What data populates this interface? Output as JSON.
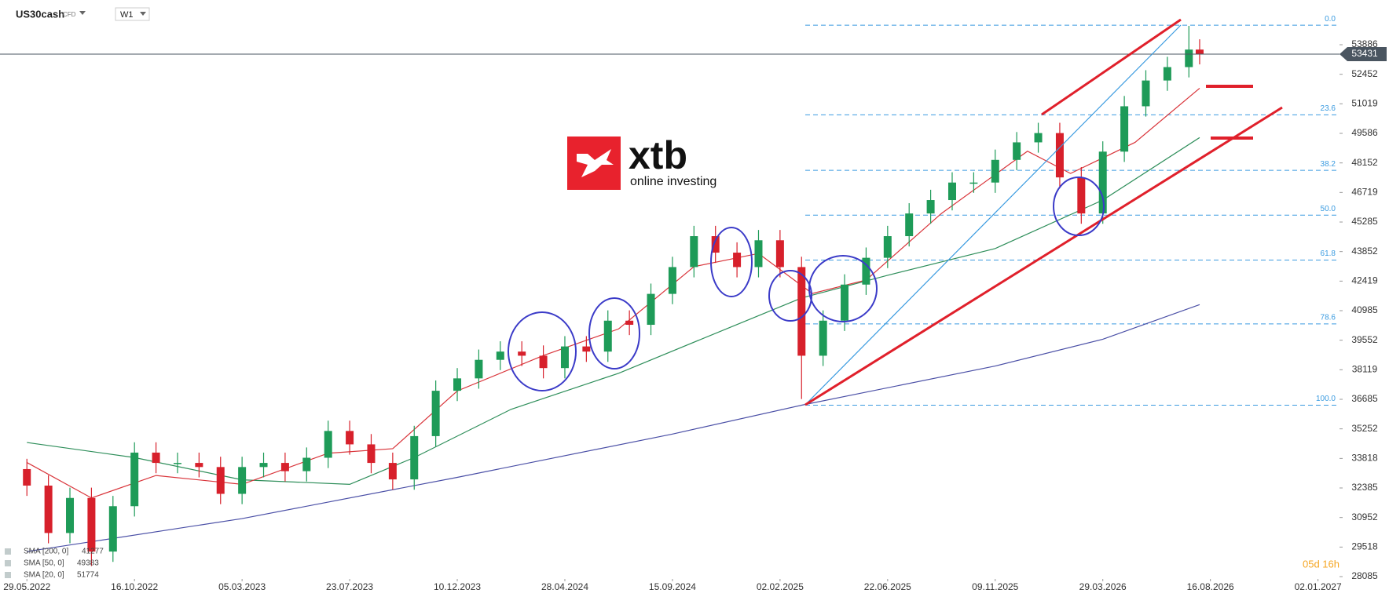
{
  "header": {
    "symbol": "US30cash",
    "instrument_type": "CFD",
    "timeframe": "W1",
    "countdown": "05d 16h"
  },
  "logo": {
    "name": "xtb",
    "tagline": "online investing"
  },
  "chart_data": {
    "type": "candlestick",
    "x": [
      0,
      4,
      8,
      12,
      16,
      20,
      24,
      28,
      32,
      36,
      40,
      44,
      48,
      52,
      56,
      60,
      64,
      68,
      72,
      76,
      80,
      84,
      88,
      92,
      96,
      100,
      104,
      108,
      112,
      116,
      120,
      124,
      128,
      132,
      136,
      140,
      144,
      148,
      152,
      156,
      160,
      164,
      168,
      172,
      176,
      180,
      184,
      188,
      192,
      196,
      200,
      204,
      208,
      212,
      216,
      218
    ],
    "open": [
      33300,
      32500,
      30200,
      31900,
      29300,
      31500,
      34100,
      33600,
      33600,
      33400,
      32100,
      33400,
      33600,
      33200,
      33850,
      35150,
      34500,
      33600,
      32800,
      34900,
      37100,
      37700,
      38600,
      39000,
      38800,
      38200,
      39250,
      39000,
      40500,
      40300,
      41800,
      43100,
      44600,
      43800,
      43100,
      44400,
      43100,
      38800,
      40500,
      42250,
      43550,
      44600,
      45700,
      46350,
      47200,
      47200,
      48300,
      49150,
      49600,
      47450,
      45700,
      48700,
      50900,
      52150,
      52800,
      53650
    ],
    "high": [
      33800,
      33000,
      32400,
      32400,
      32000,
      34600,
      34600,
      34100,
      34100,
      33900,
      33900,
      34100,
      34100,
      34350,
      35650,
      35650,
      35000,
      34100,
      35400,
      37600,
      38200,
      39100,
      39500,
      39500,
      39300,
      39750,
      39750,
      41000,
      41000,
      42300,
      43600,
      45100,
      45100,
      44300,
      44900,
      44900,
      43600,
      41000,
      42750,
      44050,
      45100,
      46200,
      46850,
      47700,
      47700,
      48800,
      49650,
      50100,
      50100,
      47950,
      49200,
      51400,
      52650,
      53300,
      54800,
      54150
    ],
    "low": [
      32000,
      29700,
      29700,
      28600,
      28800,
      31000,
      33100,
      33100,
      32900,
      31600,
      31600,
      32900,
      32700,
      32700,
      33350,
      34000,
      33100,
      32300,
      32300,
      34400,
      36600,
      37200,
      38100,
      38300,
      37700,
      37700,
      38500,
      38500,
      39800,
      39800,
      41300,
      42600,
      43300,
      42600,
      42600,
      42600,
      36700,
      38300,
      40000,
      41750,
      43050,
      44100,
      45200,
      45850,
      46700,
      46700,
      47800,
      48650,
      46950,
      45200,
      45200,
      48200,
      50400,
      51650,
      52300,
      52931
    ],
    "close": [
      32500,
      30200,
      31900,
      29300,
      31500,
      34100,
      33600,
      33600,
      33400,
      32100,
      33400,
      33600,
      33200,
      33850,
      35150,
      34500,
      33600,
      32800,
      34900,
      37100,
      37700,
      38600,
      39000,
      38800,
      38200,
      39250,
      39000,
      40500,
      40300,
      41800,
      43100,
      44600,
      43800,
      43100,
      44400,
      43100,
      38800,
      40500,
      42250,
      43550,
      44600,
      45700,
      46350,
      47200,
      47200,
      48300,
      49150,
      49600,
      47450,
      45700,
      48700,
      50900,
      52150,
      52800,
      53650,
      53431
    ],
    "up_color": "#1e9b58",
    "down_color": "#d7202b",
    "indicators": [
      {
        "name": "SMA [200, 0]",
        "color": "#4a4fa6",
        "x": [
          0,
          40,
          80,
          120,
          144,
          180,
          200,
          218
        ],
        "values": [
          29300,
          30900,
          32900,
          35000,
          36400,
          38300,
          39600,
          41277
        ]
      },
      {
        "name": "SMA [50, 0]",
        "color": "#2e8e5a",
        "x": [
          0,
          20,
          40,
          60,
          72,
          90,
          110,
          130,
          144,
          160,
          180,
          200,
          218
        ],
        "values": [
          34590,
          33860,
          32780,
          32560,
          33860,
          36200,
          37950,
          40100,
          41600,
          42700,
          44000,
          46350,
          49383
        ]
      },
      {
        "name": "SMA [20, 0]",
        "color": "#d9343a",
        "x": [
          0,
          12,
          24,
          40,
          56,
          68,
          80,
          96,
          110,
          124,
          136,
          146,
          156,
          170,
          186,
          194,
          206,
          218
        ],
        "values": [
          33620,
          31900,
          32990,
          32560,
          34070,
          34290,
          37090,
          38810,
          40100,
          43120,
          43760,
          41820,
          42470,
          45700,
          48720,
          47640,
          49150,
          51774
        ]
      }
    ],
    "fibonacci": {
      "labels": [
        "0.0",
        "23.6",
        "38.2",
        "50.0",
        "61.8",
        "78.6",
        "100.0"
      ],
      "prices": [
        54833,
        50483,
        47792,
        45617,
        43441,
        40345,
        36400
      ],
      "color": "#3a9be0"
    },
    "last_price": 53431,
    "xlim": [
      -5,
      244
    ],
    "ylim": [
      27971,
      56055
    ],
    "xticks": [
      {
        "value": 0,
        "label": "29.05.2022"
      },
      {
        "value": 20,
        "label": "16.10.2022"
      },
      {
        "value": 40,
        "label": "05.03.2023"
      },
      {
        "value": 60,
        "label": "23.07.2023"
      },
      {
        "value": 80,
        "label": "10.12.2023"
      },
      {
        "value": 100,
        "label": "28.04.2024"
      },
      {
        "value": 120,
        "label": "15.09.2024"
      },
      {
        "value": 140,
        "label": "02.02.2025"
      },
      {
        "value": 160,
        "label": "22.06.2025"
      },
      {
        "value": 180,
        "label": "09.11.2025"
      },
      {
        "value": 200,
        "label": "29.03.2026"
      },
      {
        "value": 220,
        "label": "16.08.2026"
      },
      {
        "value": 240,
        "label": "02.01.2027"
      }
    ],
    "yticks": [
      28085,
      29518,
      30952,
      32385,
      33818,
      35252,
      36685,
      38119,
      39552,
      40985,
      42419,
      43852,
      45285,
      46719,
      48152,
      49586,
      51019,
      52452,
      53886
    ]
  }
}
